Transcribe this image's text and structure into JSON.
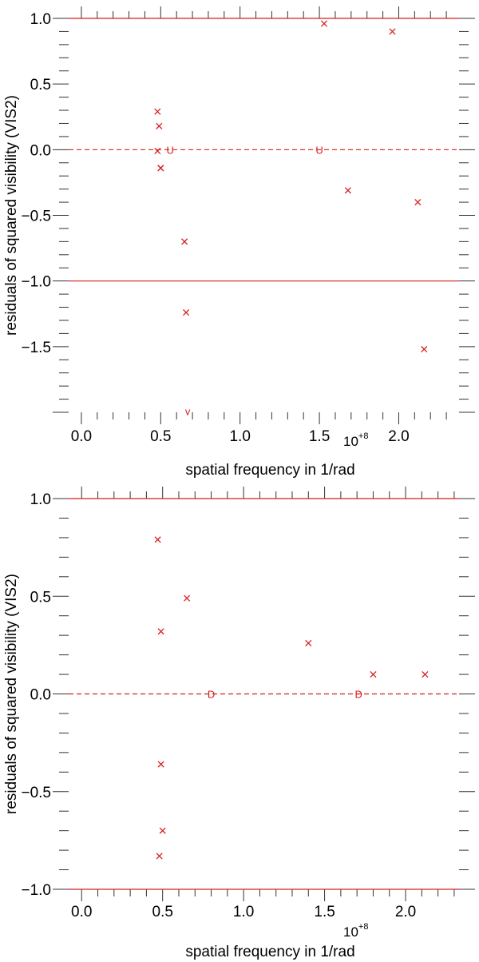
{
  "chart_data": [
    {
      "type": "scatter",
      "xlabel": "spatial frequency in 1/rad",
      "ylabel": "residuals of squared visibility (VIS2)",
      "x_multiplier": "10+8",
      "xlim": [
        -0.08,
        2.38
      ],
      "ylim": [
        -2.0,
        1.0
      ],
      "x_ticks": [
        0.0,
        0.5,
        1.0,
        1.5,
        2.0
      ],
      "x_tick_labels": [
        "0.0",
        "0.5",
        "1.0",
        "1.5",
        "2.0"
      ],
      "y_ticks": [
        1.0,
        0.5,
        0.0,
        -0.5,
        -1.0,
        -1.5
      ],
      "y_tick_labels": [
        "1.0",
        "0.5",
        "0.0",
        "−0.5",
        "−1.0",
        "−1.5"
      ],
      "reference_lines": [
        {
          "y": 1.0,
          "style": "solid"
        },
        {
          "y": 0.0,
          "style": "dashed"
        },
        {
          "y": -1.0,
          "style": "solid"
        }
      ],
      "series": [
        {
          "marker": "x",
          "color": "#d81e1e",
          "x": [
            0.48,
            0.49,
            0.5,
            0.48,
            0.5,
            0.65,
            0.66,
            1.53,
            1.68,
            1.96,
            2.12,
            2.16
          ],
          "y": [
            0.29,
            0.18,
            -0.14,
            -0.01,
            -0.14,
            -0.7,
            -1.24,
            0.96,
            -0.31,
            0.9,
            -0.4,
            -1.52
          ]
        }
      ],
      "text_markers": [
        {
          "x": 0.56,
          "y": 0.0,
          "label": "U"
        },
        {
          "x": 1.5,
          "y": 0.0,
          "label": "U"
        },
        {
          "x": 0.67,
          "y": -1.99,
          "label": "v"
        }
      ]
    },
    {
      "type": "scatter",
      "xlabel": "spatial frequency in 1/rad",
      "ylabel": "residuals of squared visibility (VIS2)",
      "x_multiplier": "10+8",
      "xlim": [
        -0.08,
        2.33
      ],
      "ylim": [
        -1.0,
        1.0
      ],
      "x_ticks": [
        0.0,
        0.5,
        1.0,
        1.5,
        2.0
      ],
      "x_tick_labels": [
        "0.0",
        "0.5",
        "1.0",
        "1.5",
        "2.0"
      ],
      "y_ticks": [
        1.0,
        0.5,
        0.0,
        -0.5,
        -1.0
      ],
      "y_tick_labels": [
        "1.0",
        "0.5",
        "0.0",
        "−0.5",
        "−1.0"
      ],
      "reference_lines": [
        {
          "y": 1.0,
          "style": "solid"
        },
        {
          "y": 0.0,
          "style": "dashed"
        },
        {
          "y": -1.0,
          "style": "solid"
        }
      ],
      "series": [
        {
          "marker": "x",
          "color": "#d81e1e",
          "x": [
            0.47,
            0.49,
            0.65,
            0.49,
            0.5,
            0.48,
            1.4,
            1.8,
            2.12
          ],
          "y": [
            0.79,
            0.32,
            0.49,
            -0.36,
            -0.7,
            -0.83,
            0.26,
            0.1,
            0.1
          ],
          "note": ""
        }
      ],
      "text_markers": [
        {
          "x": 0.8,
          "y": 0.0,
          "label": "D"
        },
        {
          "x": 1.71,
          "y": 0.0,
          "label": "D"
        }
      ]
    }
  ]
}
